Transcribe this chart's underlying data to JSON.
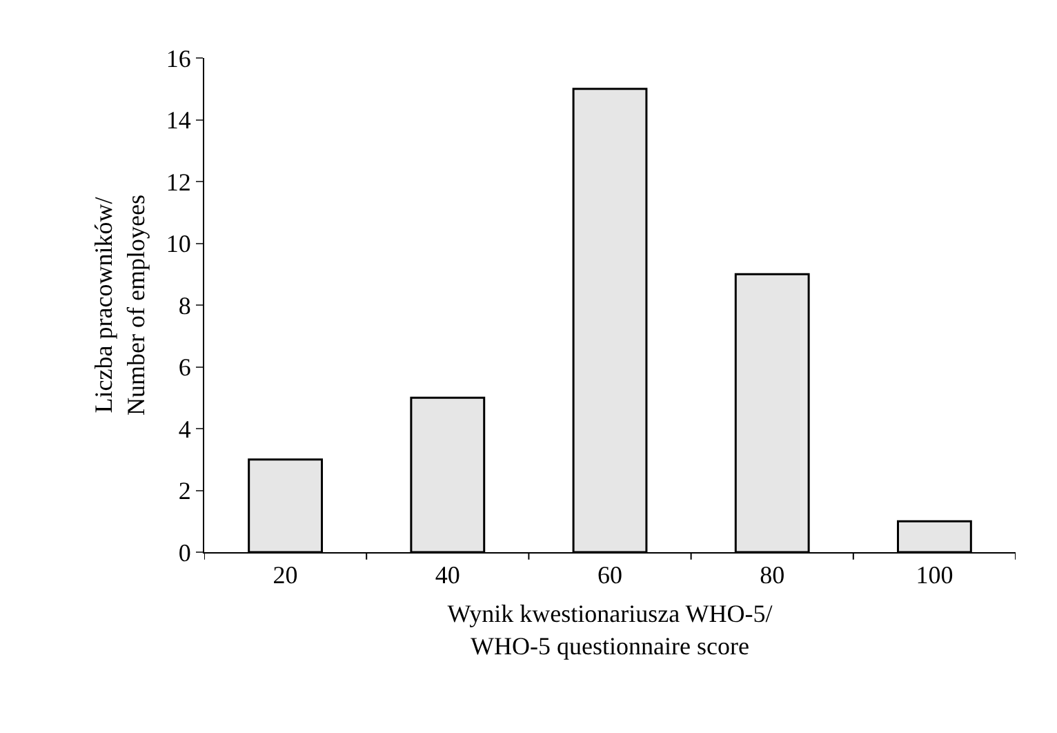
{
  "chart_data": {
    "type": "bar",
    "xlabel": "Wynik kwestionariusza WHO-5/\nWHO-5 questionnaire score",
    "ylabel": "Liczba pracowników/\nNumber of employees",
    "categories": [
      "20",
      "40",
      "60",
      "80",
      "100"
    ],
    "values": [
      3,
      5,
      15,
      9,
      1
    ],
    "color": "#e6e6e6",
    "ylim": [
      0,
      16
    ],
    "yticks": [
      0,
      2,
      4,
      6,
      8,
      10,
      12,
      14,
      16
    ]
  }
}
